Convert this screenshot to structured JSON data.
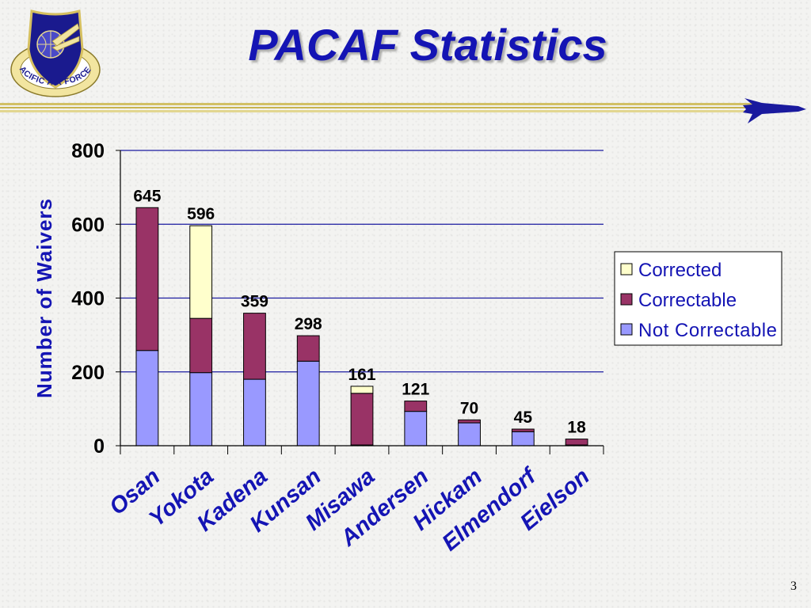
{
  "slide": {
    "title": "PACAF Statistics",
    "page_number": "3",
    "emblem_text": "PACIFIC AIR FORCES",
    "emblem_icon": "pacaf-shield-emblem",
    "aircraft_icon": "jet-aircraft-silhouette"
  },
  "colors": {
    "title": "#1414b4",
    "axis_label": "#1414b4",
    "gridline": "#1a1aa0",
    "not_correctable": "#9999ff",
    "correctable": "#993366",
    "corrected": "#ffffcc",
    "header_rule": "#d2c066"
  },
  "chart_data": {
    "type": "bar",
    "stacked": true,
    "title": "",
    "xlabel": "",
    "ylabel": "Number of Waivers",
    "ylim": [
      0,
      800
    ],
    "yticks": [
      0,
      200,
      400,
      600,
      800
    ],
    "grid": true,
    "legend_position": "right",
    "categories": [
      "Osan",
      "Yokota",
      "Kadena",
      "Kunsan",
      "Misawa",
      "Andersen",
      "Hickam",
      "Elmendorf",
      "Eielson"
    ],
    "totals": [
      645,
      596,
      359,
      298,
      161,
      121,
      70,
      45,
      18
    ],
    "series": [
      {
        "name": "Not Correctable",
        "color": "#9999ff",
        "values": [
          258,
          198,
          180,
          229,
          2,
          93,
          62,
          38,
          2
        ]
      },
      {
        "name": "Correctable",
        "color": "#993366",
        "values": [
          387,
          147,
          179,
          69,
          140,
          28,
          8,
          7,
          16
        ]
      },
      {
        "name": "Corrected",
        "color": "#ffffcc",
        "values": [
          0,
          251,
          0,
          0,
          19,
          0,
          0,
          0,
          0
        ]
      }
    ],
    "legend_order": [
      "Corrected",
      "Correctable",
      "Not Correctable"
    ]
  }
}
